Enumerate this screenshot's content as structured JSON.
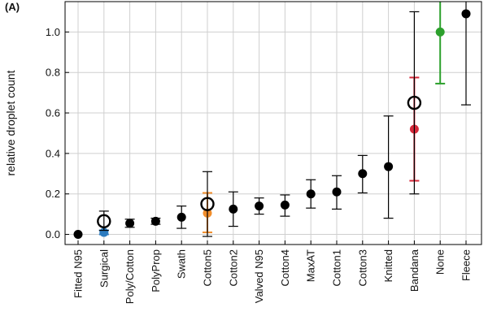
{
  "panel_label": "(A)",
  "chart_data": {
    "type": "scatter",
    "ylabel": "relative droplet count",
    "ylim": [
      -0.05,
      1.15
    ],
    "yticks": [
      "0.0",
      "0.2",
      "0.4",
      "0.6",
      "0.8",
      "1.0"
    ],
    "grid": true,
    "categories": [
      "Fitted N95",
      "Surgical",
      "Poly/Cotton",
      "PolyProp",
      "Swath",
      "Cotton5",
      "Cotton2",
      "Valved N95",
      "Cotton4",
      "MaxAT",
      "Cotton1",
      "Cotton3",
      "Knitted",
      "Bandana",
      "None",
      "Fleece"
    ],
    "points": [
      {
        "category": "Fitted N95",
        "y": 0.0,
        "low": 0.0,
        "high": 0.0,
        "color": "#000000",
        "marker": "filled"
      },
      {
        "category": "Surgical",
        "y": 0.01,
        "low": 0.0,
        "high": 0.02,
        "color": "#2c7bbf",
        "marker": "filled"
      },
      {
        "category": "Surgical",
        "y": 0.065,
        "low": 0.02,
        "high": 0.115,
        "color": "#000000",
        "marker": "open"
      },
      {
        "category": "Poly/Cotton",
        "y": 0.055,
        "low": 0.035,
        "high": 0.075,
        "color": "#000000",
        "marker": "filled"
      },
      {
        "category": "PolyProp",
        "y": 0.065,
        "low": 0.05,
        "high": 0.08,
        "color": "#000000",
        "marker": "filled"
      },
      {
        "category": "Swath",
        "y": 0.085,
        "low": 0.03,
        "high": 0.14,
        "color": "#000000",
        "marker": "filled"
      },
      {
        "category": "Cotton5",
        "y": 0.105,
        "low": 0.01,
        "high": 0.205,
        "color": "#f28e2b",
        "marker": "filled"
      },
      {
        "category": "Cotton5",
        "y": 0.15,
        "low": -0.01,
        "high": 0.31,
        "color": "#000000",
        "marker": "open"
      },
      {
        "category": "Cotton2",
        "y": 0.125,
        "low": 0.04,
        "high": 0.21,
        "color": "#000000",
        "marker": "filled"
      },
      {
        "category": "Valved N95",
        "y": 0.14,
        "low": 0.1,
        "high": 0.18,
        "color": "#000000",
        "marker": "filled"
      },
      {
        "category": "Cotton4",
        "y": 0.145,
        "low": 0.09,
        "high": 0.195,
        "color": "#000000",
        "marker": "filled"
      },
      {
        "category": "MaxAT",
        "y": 0.2,
        "low": 0.13,
        "high": 0.27,
        "color": "#000000",
        "marker": "filled"
      },
      {
        "category": "Cotton1",
        "y": 0.21,
        "low": 0.125,
        "high": 0.29,
        "color": "#000000",
        "marker": "filled"
      },
      {
        "category": "Cotton3",
        "y": 0.3,
        "low": 0.205,
        "high": 0.39,
        "color": "#000000",
        "marker": "filled"
      },
      {
        "category": "Knitted",
        "y": 0.335,
        "low": 0.08,
        "high": 0.585,
        "color": "#000000",
        "marker": "filled"
      },
      {
        "category": "Bandana",
        "y": 0.52,
        "low": 0.265,
        "high": 0.775,
        "color": "#d62839",
        "marker": "filled"
      },
      {
        "category": "Bandana",
        "y": 0.65,
        "low": 0.2,
        "high": 1.1,
        "color": "#000000",
        "marker": "open"
      },
      {
        "category": "None",
        "y": 1.0,
        "low": 0.745,
        "high": 1.25,
        "color": "#2ca02c",
        "marker": "filled"
      },
      {
        "category": "Fleece",
        "y": 1.09,
        "low": 0.64,
        "high": 1.54,
        "color": "#000000",
        "marker": "filled"
      }
    ]
  }
}
